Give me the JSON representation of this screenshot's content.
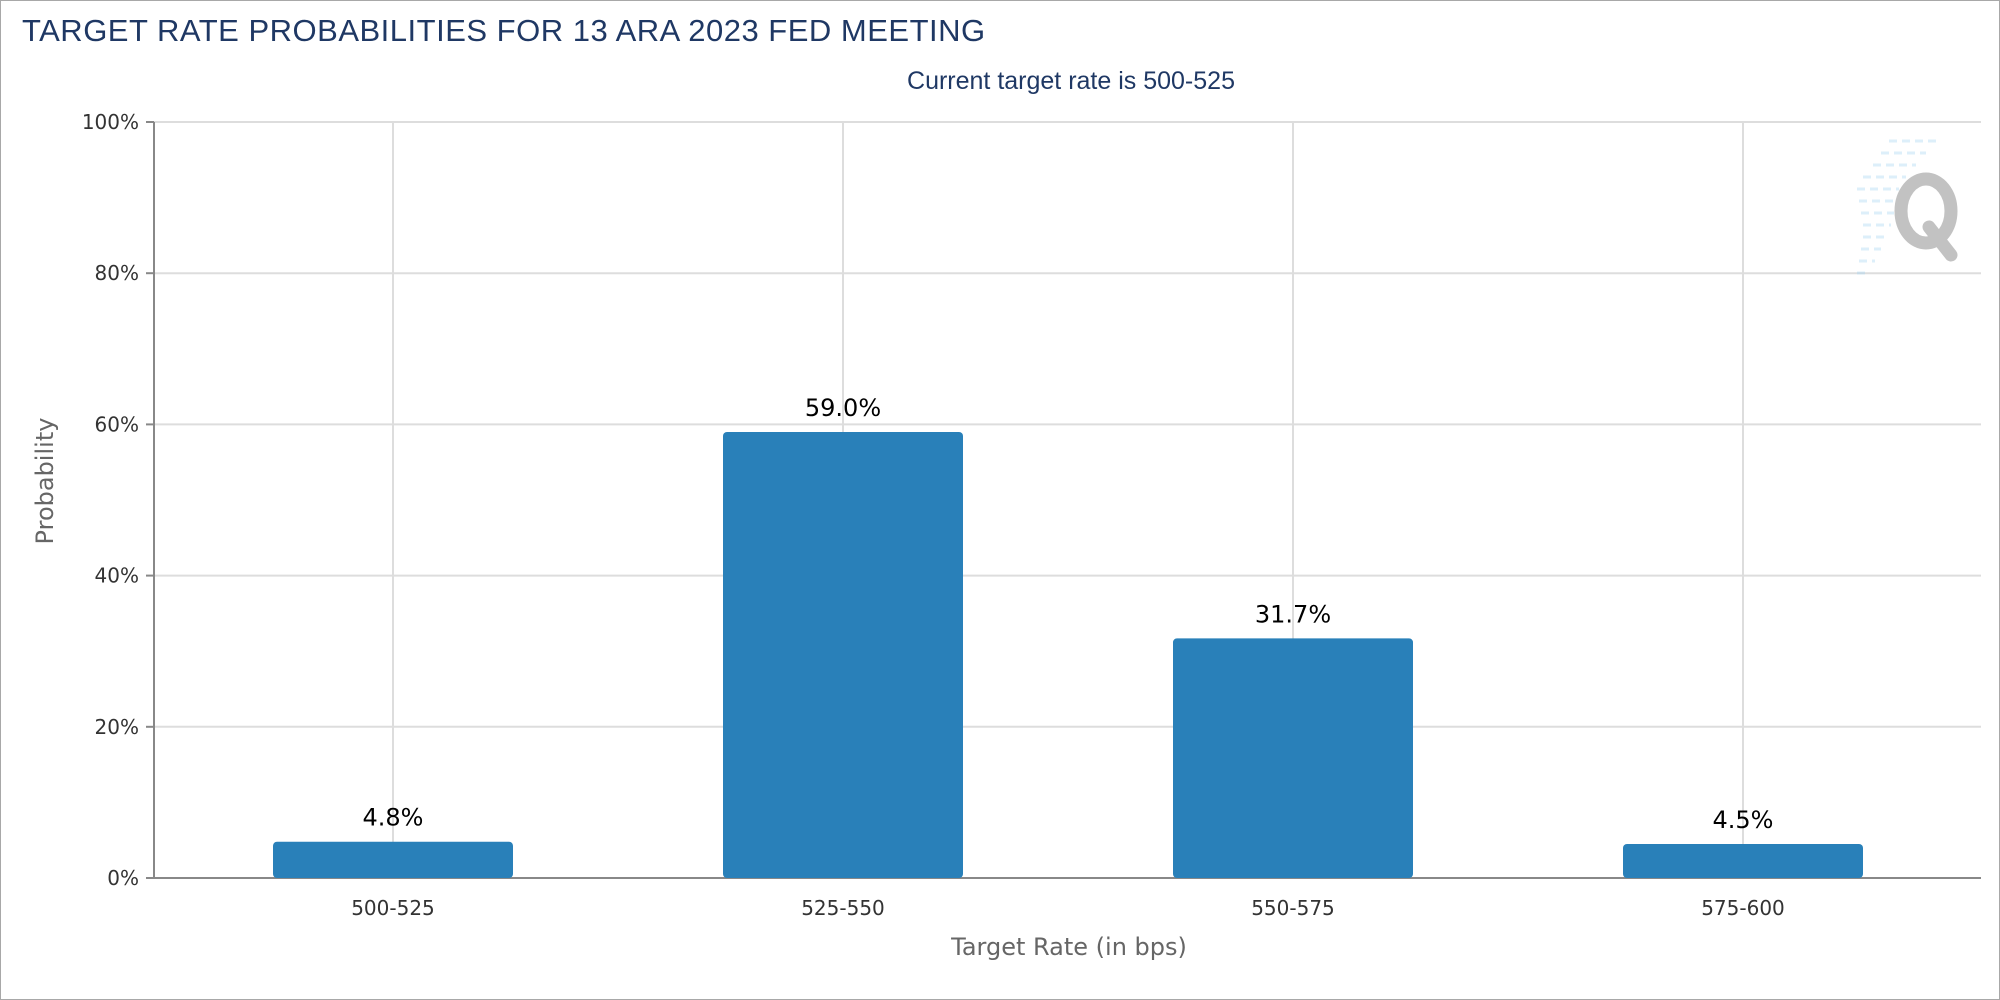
{
  "chart_data": {
    "type": "bar",
    "title": "TARGET RATE PROBABILITIES FOR 13 ARA 2023 FED MEETING",
    "subtitle": "Current target rate is 500-525",
    "xlabel": "Target Rate (in bps)",
    "ylabel": "Probability",
    "categories": [
      "500-525",
      "525-550",
      "550-575",
      "575-600"
    ],
    "values": [
      4.8,
      59.0,
      31.7,
      4.5
    ],
    "value_labels": [
      "4.8%",
      "59.0%",
      "31.7%",
      "4.5%"
    ],
    "ylim": [
      0,
      100
    ],
    "yticks": [
      0,
      20,
      40,
      60,
      80,
      100
    ],
    "ytick_labels": [
      "0%",
      "20%",
      "40%",
      "60%",
      "80%",
      "100%"
    ],
    "grid": true,
    "legend": "none",
    "colors": {
      "bar": "#2980b9",
      "title": "#1f3864",
      "grid": "#dddddd",
      "axis": "#888888"
    }
  },
  "watermark": {
    "icon": "q-logo-icon"
  }
}
